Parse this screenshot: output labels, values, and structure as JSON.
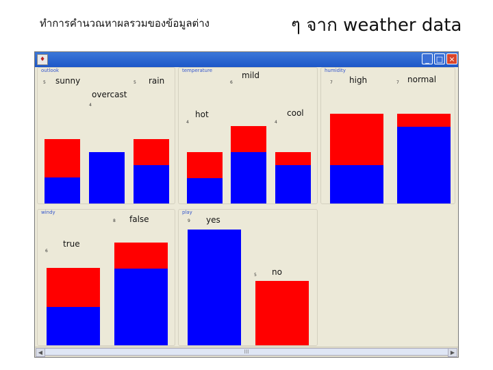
{
  "slide": {
    "title_thai": "ทำการคำนวณหาผลรวมของข้อมูลต่าง",
    "title_suffix": "ๆ จาก weather data"
  },
  "window": {
    "scroll_thumb_glyph": "III",
    "left_arrow": "◀",
    "right_arrow": "▶"
  },
  "colors": {
    "class_a": "#ff0000",
    "class_b": "#0000ff"
  },
  "attributes": [
    {
      "name": "outlook",
      "values": [
        {
          "label": "sunny",
          "count": "5",
          "red": 3,
          "blue": 2
        },
        {
          "label": "overcast",
          "count": "4",
          "red": 0,
          "blue": 4
        },
        {
          "label": "rain",
          "count": "5",
          "red": 2,
          "blue": 3
        }
      ]
    },
    {
      "name": "temperature",
      "values": [
        {
          "label": "hot",
          "count": "4",
          "red": 2,
          "blue": 2
        },
        {
          "label": "mild",
          "count": "6",
          "red": 2,
          "blue": 4
        },
        {
          "label": "cool",
          "count": "4",
          "red": 1,
          "blue": 3
        }
      ]
    },
    {
      "name": "humidity",
      "values": [
        {
          "label": "high",
          "count": "7",
          "red": 4,
          "blue": 3
        },
        {
          "label": "normal",
          "count": "7",
          "red": 1,
          "blue": 6
        }
      ]
    },
    {
      "name": "windy",
      "values": [
        {
          "label": "true",
          "count": "6",
          "red": 3,
          "blue": 3
        },
        {
          "label": "false",
          "count": "8",
          "red": 2,
          "blue": 6
        }
      ]
    },
    {
      "name": "play",
      "values": [
        {
          "label": "yes",
          "count": "9",
          "red": 0,
          "blue": 9
        },
        {
          "label": "no",
          "count": "5",
          "red": 5,
          "blue": 0
        }
      ]
    }
  ]
}
